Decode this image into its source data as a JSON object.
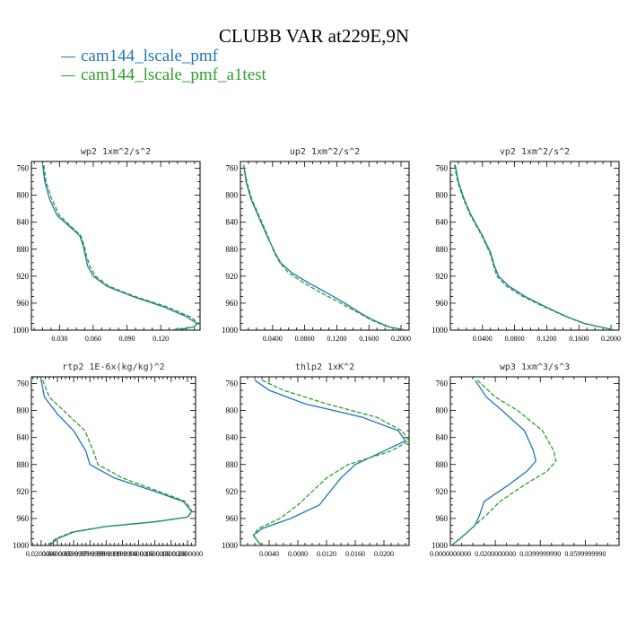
{
  "title": "CLUBB VAR at229E,9N",
  "legend": [
    {
      "label": "cam144_lscale_pmf",
      "color": "#1f77b4"
    },
    {
      "label": "cam144_lscale_pmf_a1test",
      "color": "#2ca02c"
    }
  ],
  "chart_data": [
    {
      "type": "line",
      "title": "wp2  1xm^2/s^2",
      "xlim": [
        0.005,
        0.155
      ],
      "ylim": [
        1000,
        750
      ],
      "yticks": [
        "760",
        "800",
        "840",
        "880",
        "920",
        "960",
        "1000"
      ],
      "xticks": [
        "0.030",
        "0.060",
        "0.090",
        "0.120"
      ],
      "xtick_values": [
        0.03,
        0.06,
        0.09,
        0.12
      ],
      "pressure": [
        755,
        780,
        805,
        830,
        860,
        875,
        890,
        905,
        920,
        935,
        950,
        965,
        980,
        990,
        995,
        1000
      ],
      "series": [
        {
          "color": "#1f77b4",
          "dashed": false,
          "x": [
            0.015,
            0.017,
            0.021,
            0.028,
            0.048,
            0.051,
            0.053,
            0.055,
            0.06,
            0.072,
            0.095,
            0.122,
            0.143,
            0.152,
            0.15,
            0.135
          ]
        },
        {
          "color": "#2ca02c",
          "dashed": true,
          "x": [
            0.016,
            0.018,
            0.023,
            0.03,
            0.049,
            0.052,
            0.054,
            0.057,
            0.062,
            0.074,
            0.097,
            0.125,
            0.146,
            0.154,
            0.15,
            0.128
          ]
        }
      ]
    },
    {
      "type": "line",
      "title": "up2  1xm^2/s^2",
      "xlim": [
        0.0,
        0.21
      ],
      "ylim": [
        1000,
        750
      ],
      "yticks": [
        "760",
        "800",
        "840",
        "880",
        "920",
        "960",
        "1000"
      ],
      "xticks": [
        "0.0400",
        "0.0800",
        "0.1200",
        "0.1600",
        "0.2000"
      ],
      "xtick_values": [
        0.04,
        0.08,
        0.12,
        0.16,
        0.2
      ],
      "pressure": [
        755,
        780,
        805,
        830,
        860,
        885,
        900,
        915,
        930,
        945,
        960,
        975,
        985,
        995,
        1000
      ],
      "series": [
        {
          "color": "#1f77b4",
          "dashed": false,
          "x": [
            0.004,
            0.007,
            0.013,
            0.022,
            0.033,
            0.043,
            0.05,
            0.064,
            0.085,
            0.108,
            0.13,
            0.15,
            0.165,
            0.185,
            0.205
          ]
        },
        {
          "color": "#2ca02c",
          "dashed": true,
          "x": [
            0.004,
            0.008,
            0.014,
            0.023,
            0.034,
            0.042,
            0.049,
            0.06,
            0.079,
            0.101,
            0.125,
            0.148,
            0.163,
            0.183,
            0.206
          ]
        }
      ]
    },
    {
      "type": "line",
      "title": "vp2  1xm^2/s^2",
      "xlim": [
        0.0,
        0.21
      ],
      "ylim": [
        1000,
        750
      ],
      "yticks": [
        "760",
        "800",
        "840",
        "880",
        "920",
        "960",
        "1000"
      ],
      "xticks": [
        "0.0400",
        "0.0800",
        "0.1200",
        "0.1600",
        "0.2000"
      ],
      "xtick_values": [
        0.04,
        0.08,
        0.12,
        0.16,
        0.2
      ],
      "pressure": [
        755,
        780,
        805,
        830,
        860,
        885,
        905,
        920,
        935,
        950,
        965,
        980,
        990,
        1000
      ],
      "series": [
        {
          "color": "#1f77b4",
          "dashed": false,
          "x": [
            0.006,
            0.01,
            0.017,
            0.026,
            0.04,
            0.05,
            0.055,
            0.06,
            0.073,
            0.093,
            0.118,
            0.145,
            0.167,
            0.205
          ]
        },
        {
          "color": "#2ca02c",
          "dashed": true,
          "x": [
            0.005,
            0.009,
            0.016,
            0.025,
            0.039,
            0.049,
            0.054,
            0.058,
            0.07,
            0.09,
            0.116,
            0.144,
            0.166,
            0.205
          ]
        }
      ]
    },
    {
      "type": "line",
      "title": "rtp2  1E-6x(kg/kg)^2",
      "xlim": [
        0.008,
        0.21
      ],
      "ylim": [
        1000,
        750
      ],
      "yticks": [
        "760",
        "800",
        "840",
        "880",
        "920",
        "960",
        "1000"
      ],
      "xticks": [
        "0.0200000",
        "0.0400000",
        "0.0599999",
        "0.0799999",
        "0.0999999",
        "0.1199999",
        "0.1400000",
        "0.1600000",
        "0.1800000",
        "0.2000000"
      ],
      "xtick_values": [
        0.02,
        0.04,
        0.06,
        0.08,
        0.1,
        0.12,
        0.14,
        0.16,
        0.18,
        0.2
      ],
      "pressure": [
        755,
        780,
        805,
        830,
        860,
        880,
        900,
        920,
        935,
        950,
        958,
        965,
        972,
        980,
        990,
        1000
      ],
      "series": [
        {
          "color": "#1f77b4",
          "dashed": false,
          "x": [
            0.02,
            0.024,
            0.04,
            0.06,
            0.075,
            0.08,
            0.11,
            0.16,
            0.195,
            0.205,
            0.2,
            0.16,
            0.1,
            0.06,
            0.04,
            0.03
          ]
        },
        {
          "color": "#2ca02c",
          "dashed": true,
          "x": [
            0.022,
            0.03,
            0.052,
            0.074,
            0.084,
            0.09,
            0.12,
            0.165,
            0.198,
            0.206,
            0.2,
            0.158,
            0.098,
            0.058,
            0.038,
            0.028
          ]
        }
      ]
    },
    {
      "type": "line",
      "title": "thlp2  1xK^2",
      "xlim": [
        0.0,
        0.0235
      ],
      "ylim": [
        1000,
        750
      ],
      "yticks": [
        "760",
        "800",
        "840",
        "880",
        "920",
        "960",
        "1000"
      ],
      "xticks": [
        "0.0040",
        "0.0080",
        "0.0120",
        "0.0160",
        "0.0200"
      ],
      "xtick_values": [
        0.004,
        0.008,
        0.012,
        0.016,
        0.02
      ],
      "pressure": [
        755,
        770,
        790,
        810,
        830,
        845,
        860,
        880,
        900,
        920,
        940,
        960,
        975,
        985,
        995,
        1000
      ],
      "series": [
        {
          "color": "#1f77b4",
          "dashed": false,
          "x": [
            0.002,
            0.004,
            0.009,
            0.017,
            0.022,
            0.023,
            0.02,
            0.016,
            0.014,
            0.0125,
            0.011,
            0.007,
            0.003,
            0.0018,
            0.0025,
            0.003
          ]
        },
        {
          "color": "#2ca02c",
          "dashed": true,
          "x": [
            0.003,
            0.006,
            0.012,
            0.019,
            0.0225,
            0.0235,
            0.021,
            0.015,
            0.012,
            0.01,
            0.008,
            0.0055,
            0.0025,
            0.0018,
            0.0025,
            0.003
          ]
        }
      ]
    },
    {
      "type": "line",
      "title": "wp3  1xm^3/s^3",
      "xlim": [
        0.0,
        0.075
      ],
      "ylim": [
        1000,
        750
      ],
      "yticks": [
        "760",
        "800",
        "840",
        "880",
        "920",
        "960",
        "1000"
      ],
      "xticks": [
        "0.0000000000",
        "0.0200000000",
        "0.0399999990",
        "0.0599999990"
      ],
      "xtick_values": [
        0.0,
        0.02,
        0.04,
        0.06
      ],
      "pressure": [
        755,
        780,
        800,
        830,
        860,
        875,
        890,
        910,
        935,
        955,
        970,
        985,
        1000
      ],
      "series": [
        {
          "color": "#1f77b4",
          "dashed": false,
          "x": [
            0.011,
            0.016,
            0.023,
            0.033,
            0.037,
            0.038,
            0.034,
            0.026,
            0.015,
            0.013,
            0.011,
            0.006,
            0.0005
          ]
        },
        {
          "color": "#2ca02c",
          "dashed": true,
          "x": [
            0.012,
            0.02,
            0.03,
            0.041,
            0.046,
            0.047,
            0.043,
            0.033,
            0.022,
            0.016,
            0.011,
            0.006,
            0.0005
          ]
        }
      ]
    }
  ]
}
